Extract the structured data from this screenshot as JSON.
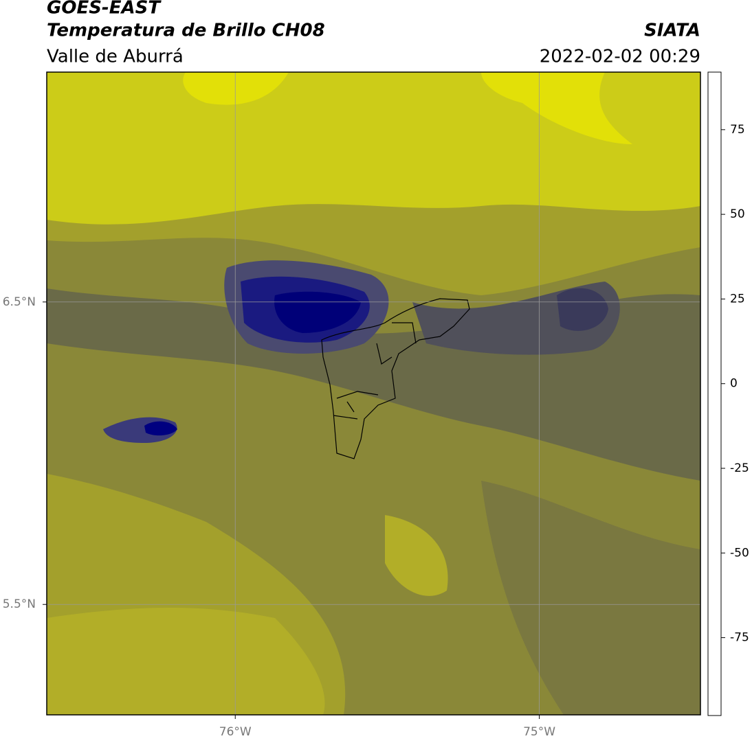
{
  "header": {
    "satellite": "GOES-EAST",
    "product": "Temperatura de Brillo CH08",
    "region": "Valle de Aburrá",
    "source": "SIATA",
    "datetime": "2022-02-02 00:29"
  },
  "map": {
    "lonlim": [
      -76.62,
      -74.47
    ],
    "latlim": [
      5.135,
      7.26
    ],
    "lonticks": [
      {
        "value": -76,
        "label": "76°W"
      },
      {
        "value": -75,
        "label": "75°W"
      }
    ],
    "latticks": [
      {
        "value": 6.5,
        "label": "6.5°N"
      },
      {
        "value": 5.5,
        "label": "5.5°N"
      }
    ],
    "grid": true
  },
  "colorbar": {
    "clim": [
      -98,
      92
    ],
    "ticks": [
      75,
      50,
      25,
      0,
      -25,
      -50,
      -75
    ],
    "stops": [
      {
        "value": -98,
        "color": "#ffffff"
      },
      {
        "value": -94,
        "color": "#ffffff"
      },
      {
        "value": -94,
        "color": "#00e8e0"
      },
      {
        "value": -80,
        "color": "#20b890"
      },
      {
        "value": -62,
        "color": "#3a8a30"
      },
      {
        "value": -52,
        "color": "#e0f0e0"
      },
      {
        "value": -48,
        "color": "#ffffff"
      },
      {
        "value": -38,
        "color": "#8080c0"
      },
      {
        "value": -29,
        "color": "#000080"
      },
      {
        "value": -24,
        "color": "#505050"
      },
      {
        "value": -19,
        "color": "#9a9a30"
      },
      {
        "value": -14,
        "color": "#f0f000"
      },
      {
        "value": -5,
        "color": "#ffa000"
      },
      {
        "value": 8,
        "color": "#ff1000"
      },
      {
        "value": 8,
        "color": "#000000"
      },
      {
        "value": 92,
        "color": "#000000"
      }
    ]
  }
}
